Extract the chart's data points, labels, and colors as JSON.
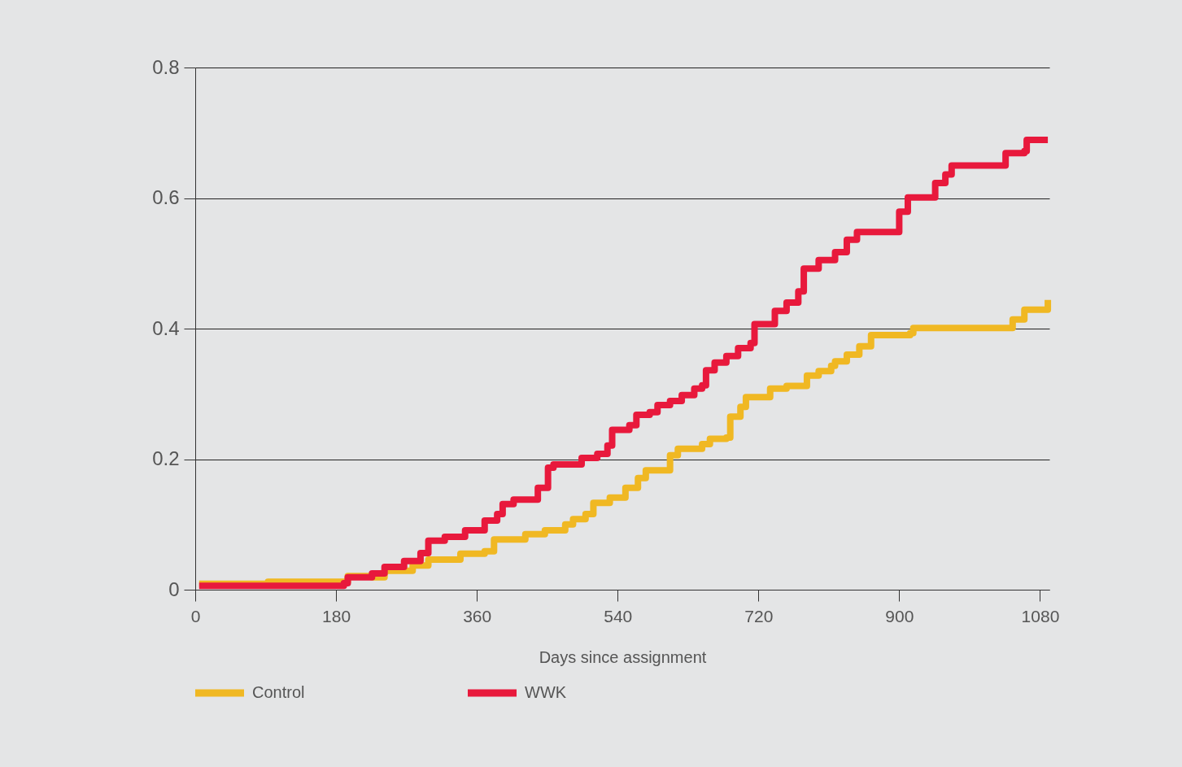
{
  "chart_data": {
    "type": "step",
    "xlabel": "Days since assignment",
    "xlim": [
      0,
      1092
    ],
    "xticks": [
      0,
      180,
      360,
      540,
      720,
      900,
      1080
    ],
    "ylim": [
      0,
      0.8
    ],
    "yticks": [
      0,
      0.2,
      0.4,
      0.6,
      0.8
    ],
    "grid": "y",
    "legend": "bottom",
    "line_style": "solid",
    "marker": "none",
    "series": [
      {
        "name": "Control",
        "color": "#f0b823",
        "x": [
          5,
          93,
          195,
          226,
          242,
          278,
          298,
          339,
          370,
          382,
          422,
          447,
          473,
          483,
          499,
          509,
          530,
          550,
          566,
          576,
          602,
          607,
          617,
          648,
          658,
          679,
          684,
          697,
          704,
          730,
          735,
          756,
          776,
          782,
          797,
          813,
          818,
          833,
          849,
          864,
          914,
          918,
          1040,
          1045,
          1060,
          1090
        ],
        "values": [
          0.009,
          0.012,
          0.021,
          0.019,
          0.029,
          0.037,
          0.046,
          0.055,
          0.059,
          0.077,
          0.085,
          0.091,
          0.1,
          0.108,
          0.116,
          0.133,
          0.141,
          0.156,
          0.171,
          0.183,
          0.183,
          0.206,
          0.216,
          0.223,
          0.231,
          0.233,
          0.265,
          0.28,
          0.295,
          0.295,
          0.308,
          0.312,
          0.312,
          0.328,
          0.335,
          0.343,
          0.35,
          0.36,
          0.373,
          0.39,
          0.393,
          0.401,
          0.401,
          0.414,
          0.429,
          0.444
        ]
      },
      {
        "name": "WWK",
        "color": "#e8193c",
        "x": [
          5,
          190,
          195,
          226,
          242,
          267,
          288,
          298,
          319,
          345,
          370,
          386,
          393,
          407,
          427,
          438,
          451,
          458,
          489,
          494,
          514,
          527,
          533,
          555,
          564,
          581,
          591,
          607,
          622,
          638,
          648,
          653,
          664,
          679,
          694,
          710,
          715,
          736,
          741,
          756,
          771,
          778,
          797,
          818,
          833,
          846,
          895,
          900,
          911,
          941,
          946,
          959,
          967,
          1034,
          1036,
          1060,
          1063,
          1090
        ],
        "values": [
          0.006,
          0.01,
          0.019,
          0.025,
          0.035,
          0.044,
          0.056,
          0.075,
          0.081,
          0.091,
          0.106,
          0.116,
          0.131,
          0.138,
          0.138,
          0.156,
          0.187,
          0.192,
          0.192,
          0.202,
          0.208,
          0.221,
          0.245,
          0.252,
          0.268,
          0.272,
          0.283,
          0.289,
          0.298,
          0.308,
          0.313,
          0.336,
          0.348,
          0.358,
          0.37,
          0.378,
          0.407,
          0.407,
          0.427,
          0.44,
          0.457,
          0.492,
          0.505,
          0.517,
          0.536,
          0.548,
          0.548,
          0.579,
          0.601,
          0.601,
          0.623,
          0.636,
          0.65,
          0.65,
          0.669,
          0.672,
          0.689,
          0.689
        ]
      }
    ]
  }
}
